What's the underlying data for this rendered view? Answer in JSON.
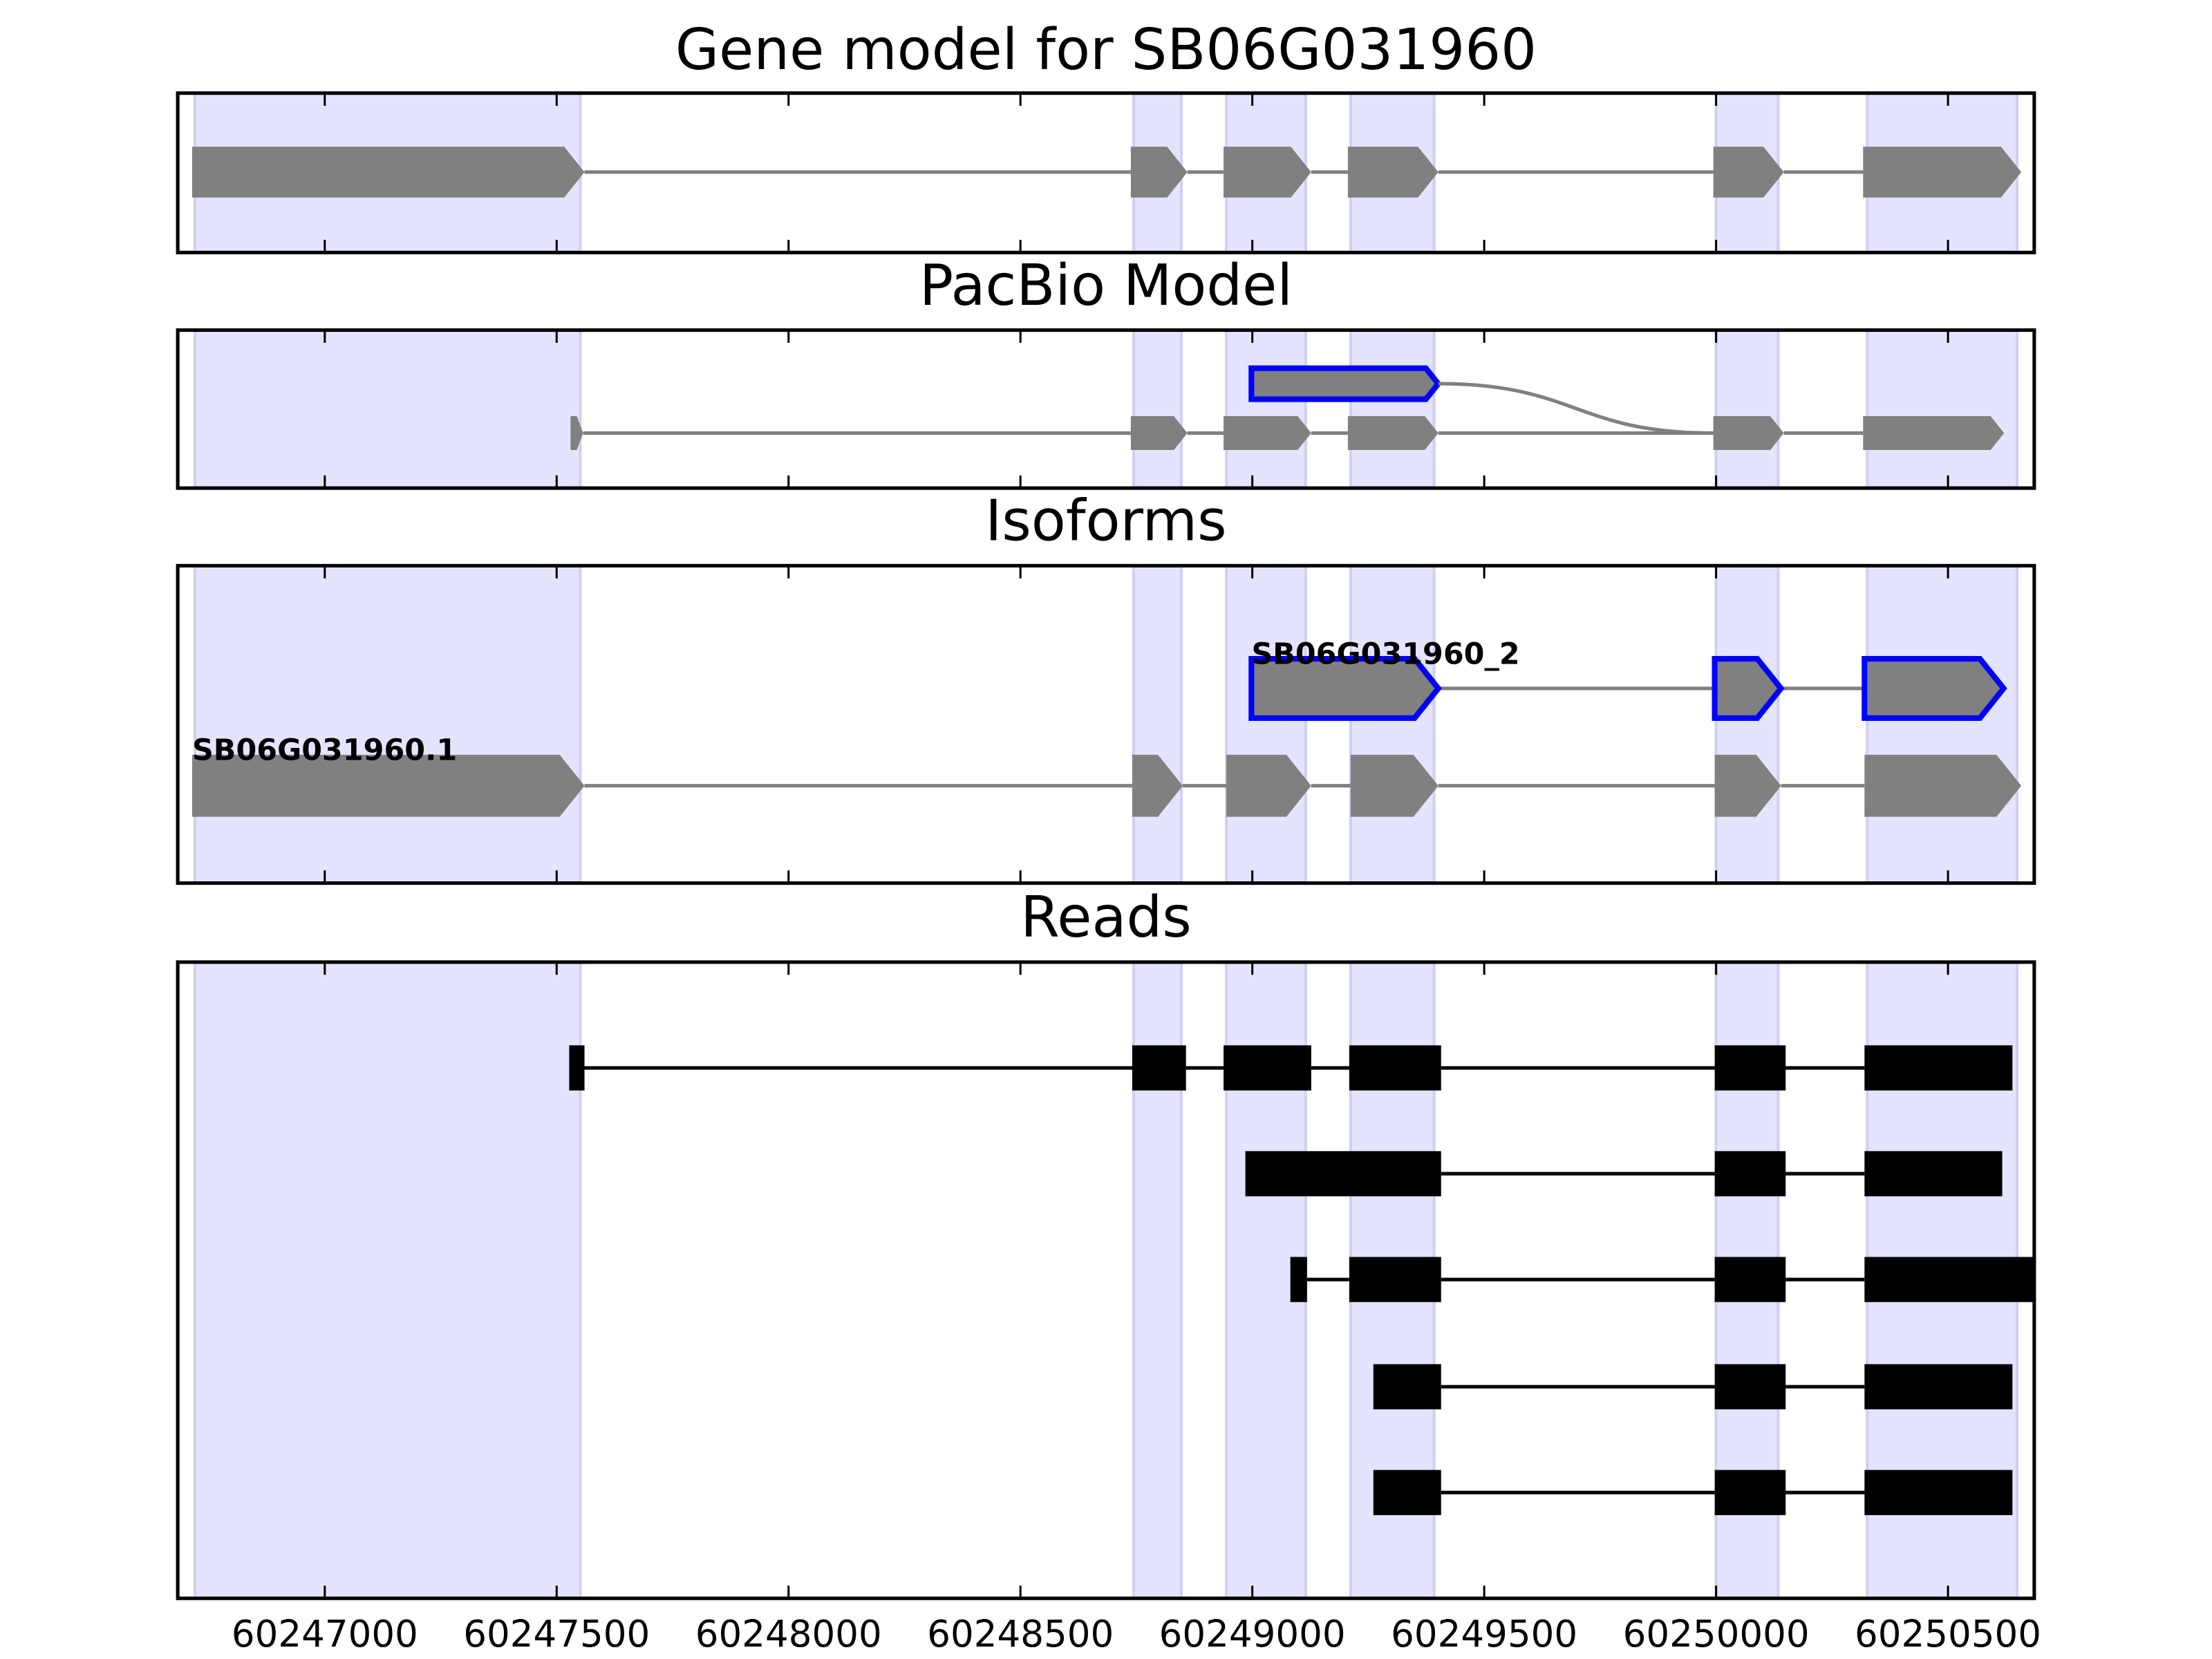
{
  "chart_data": {
    "type": "gene_tracks",
    "xlim": [
      60246683,
      60250686
    ],
    "xticks": [
      60247000,
      60247500,
      60248000,
      60248500,
      60249000,
      60249500,
      60250000,
      60250500
    ],
    "highlights": [
      [
        60246720,
        60247551
      ],
      [
        60248744,
        60248847
      ],
      [
        60248944,
        60249115
      ],
      [
        60249212,
        60249392
      ],
      [
        60250000,
        60250134
      ],
      [
        60250326,
        60250649
      ]
    ],
    "panels": [
      {
        "title": "Gene model for SB06G031960",
        "style": "arrow",
        "tracks": [
          {
            "color": "#808080",
            "exons": [
              [
                60246714,
                60247560
              ],
              [
                60248738,
                60248860
              ],
              [
                60248938,
                60249127
              ],
              [
                60249206,
                60249401
              ],
              [
                60249994,
                60250146
              ],
              [
                60250317,
                60250658
              ]
            ]
          }
        ]
      },
      {
        "title": "PacBio Model",
        "style": "arrow",
        "tracks": [
          {
            "color": "#808080",
            "edgecolor": "#0000ff",
            "exons": [
              [
                60248998,
                60249401
              ]
            ]
          },
          {
            "color": "#808080",
            "exons": [
              [
                60247530,
                60247557
              ],
              [
                60248738,
                60248860
              ],
              [
                60248938,
                60249127
              ],
              [
                60249206,
                60249401
              ],
              [
                60249994,
                60250146
              ],
              [
                60250317,
                60250621
              ]
            ]
          }
        ]
      },
      {
        "title": "Isoforms",
        "style": "arrow",
        "tracks": [
          {
            "name": "SB06G031960_2",
            "color": "#808080",
            "edgecolor": "#0000ff",
            "exons": [
              [
                60248998,
                60249401
              ],
              [
                60249997,
                60250140
              ],
              [
                60250320,
                60250620
              ]
            ]
          },
          {
            "name": "SB06G031960.1",
            "color": "#808080",
            "exons": [
              [
                60246714,
                60247560
              ],
              [
                60248741,
                60248850
              ],
              [
                60248944,
                60249127
              ],
              [
                60249212,
                60249401
              ],
              [
                60249997,
                60250140
              ],
              [
                60250320,
                60250658
              ]
            ]
          }
        ]
      },
      {
        "title": "Reads",
        "style": "box",
        "tracks": [
          {
            "color": "#000000",
            "exons": [
              [
                60247527,
                60247560
              ],
              [
                60248741,
                60248857
              ],
              [
                60248938,
                60249127
              ],
              [
                60249209,
                60249407
              ],
              [
                60249997,
                60250150
              ],
              [
                60250320,
                60250639
              ]
            ]
          },
          {
            "color": "#000000",
            "exons": [
              [
                60248985,
                60249407
              ],
              [
                60249997,
                60250150
              ],
              [
                60250320,
                60250617
              ]
            ]
          },
          {
            "color": "#000000",
            "exons": [
              [
                60249082,
                60249118
              ],
              [
                60249209,
                60249407
              ],
              [
                60249997,
                60250150
              ],
              [
                60250320,
                60250686
              ]
            ]
          },
          {
            "color": "#000000",
            "exons": [
              [
                60249261,
                60249407
              ],
              [
                60249997,
                60250150
              ],
              [
                60250320,
                60250639
              ]
            ]
          },
          {
            "color": "#000000",
            "exons": [
              [
                60249261,
                60249407
              ],
              [
                60249997,
                60250150
              ],
              [
                60250320,
                60250639
              ]
            ]
          }
        ]
      }
    ]
  }
}
